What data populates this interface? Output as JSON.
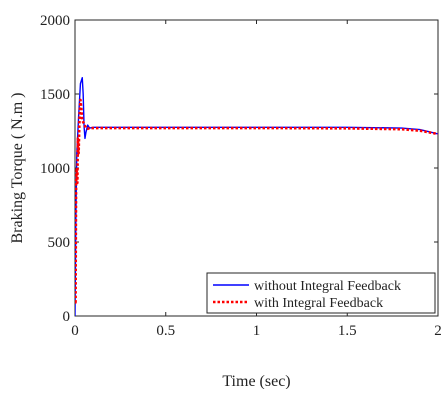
{
  "chart_data": {
    "type": "line",
    "title": "",
    "xlabel": "Time (sec)",
    "ylabel": "Braking Torque ( N.m )",
    "xlim": [
      0,
      2
    ],
    "ylim": [
      0,
      2000
    ],
    "x_ticks": [
      0,
      0.5,
      1,
      1.5,
      2
    ],
    "x_tick_labels": [
      "0",
      "0.5",
      "1",
      "1.5",
      "2"
    ],
    "y_ticks": [
      0,
      500,
      1000,
      1500,
      2000
    ],
    "y_tick_labels": [
      "0",
      "500",
      "1000",
      "1500",
      "2000"
    ],
    "grid": false,
    "legend_position": "bottom-right",
    "series": [
      {
        "name": "without Integral Feedback",
        "color": "#0000ff",
        "dash": "solid",
        "x": [
          0,
          0.005,
          0.01,
          0.02,
          0.03,
          0.04,
          0.045,
          0.05,
          0.055,
          0.06,
          0.07,
          0.08,
          0.1,
          0.2,
          0.5,
          1.0,
          1.5,
          1.8,
          1.9,
          1.95,
          2.0
        ],
        "y": [
          0,
          700,
          1100,
          1350,
          1570,
          1610,
          1500,
          1280,
          1200,
          1240,
          1290,
          1270,
          1275,
          1275,
          1275,
          1275,
          1275,
          1270,
          1260,
          1245,
          1230
        ]
      },
      {
        "name": "with Integral Feedback",
        "color": "#ff0000",
        "dash": "dotted",
        "x": [
          0,
          0.003,
          0.006,
          0.01,
          0.013,
          0.016,
          0.02,
          0.025,
          0.03,
          0.035,
          0.04,
          0.05,
          0.06,
          0.07,
          0.08,
          0.1,
          0.2,
          0.5,
          1.0,
          1.5,
          1.8,
          1.9,
          2.0
        ],
        "y": [
          100,
          80,
          900,
          1000,
          900,
          1200,
          1100,
          1350,
          1460,
          1400,
          1320,
          1300,
          1270,
          1265,
          1270,
          1270,
          1270,
          1270,
          1270,
          1268,
          1262,
          1252,
          1230
        ]
      }
    ]
  }
}
